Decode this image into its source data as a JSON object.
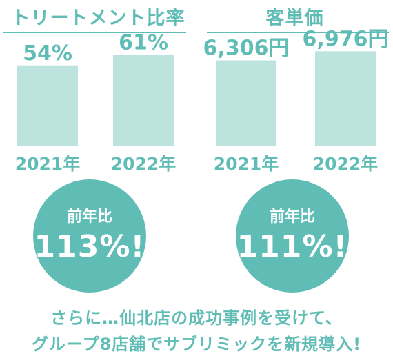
{
  "chart_data": [
    {
      "type": "bar",
      "title": "トリートメント比率",
      "categories": [
        "2021年",
        "2022年"
      ],
      "values": [
        54,
        61
      ],
      "value_labels": [
        "54%",
        "61%"
      ],
      "ylim": [
        0,
        70
      ]
    },
    {
      "type": "bar",
      "title": "客単価",
      "categories": [
        "2021年",
        "2022年"
      ],
      "values": [
        6306,
        6976
      ],
      "value_labels": [
        "6,306円",
        "6,976円"
      ],
      "ylim": [
        0,
        7700
      ]
    }
  ],
  "badges": [
    {
      "label": "前年比",
      "value": "113%!"
    },
    {
      "label": "前年比",
      "value": "111%!"
    }
  ],
  "footer": {
    "line1": "さらに…仙北店の成功事例を受けて、",
    "line2": "グループ8店舗でサブリミックを新規導入!"
  },
  "colors": {
    "accent": "#5fbdb6",
    "bar": "#bde3df"
  }
}
